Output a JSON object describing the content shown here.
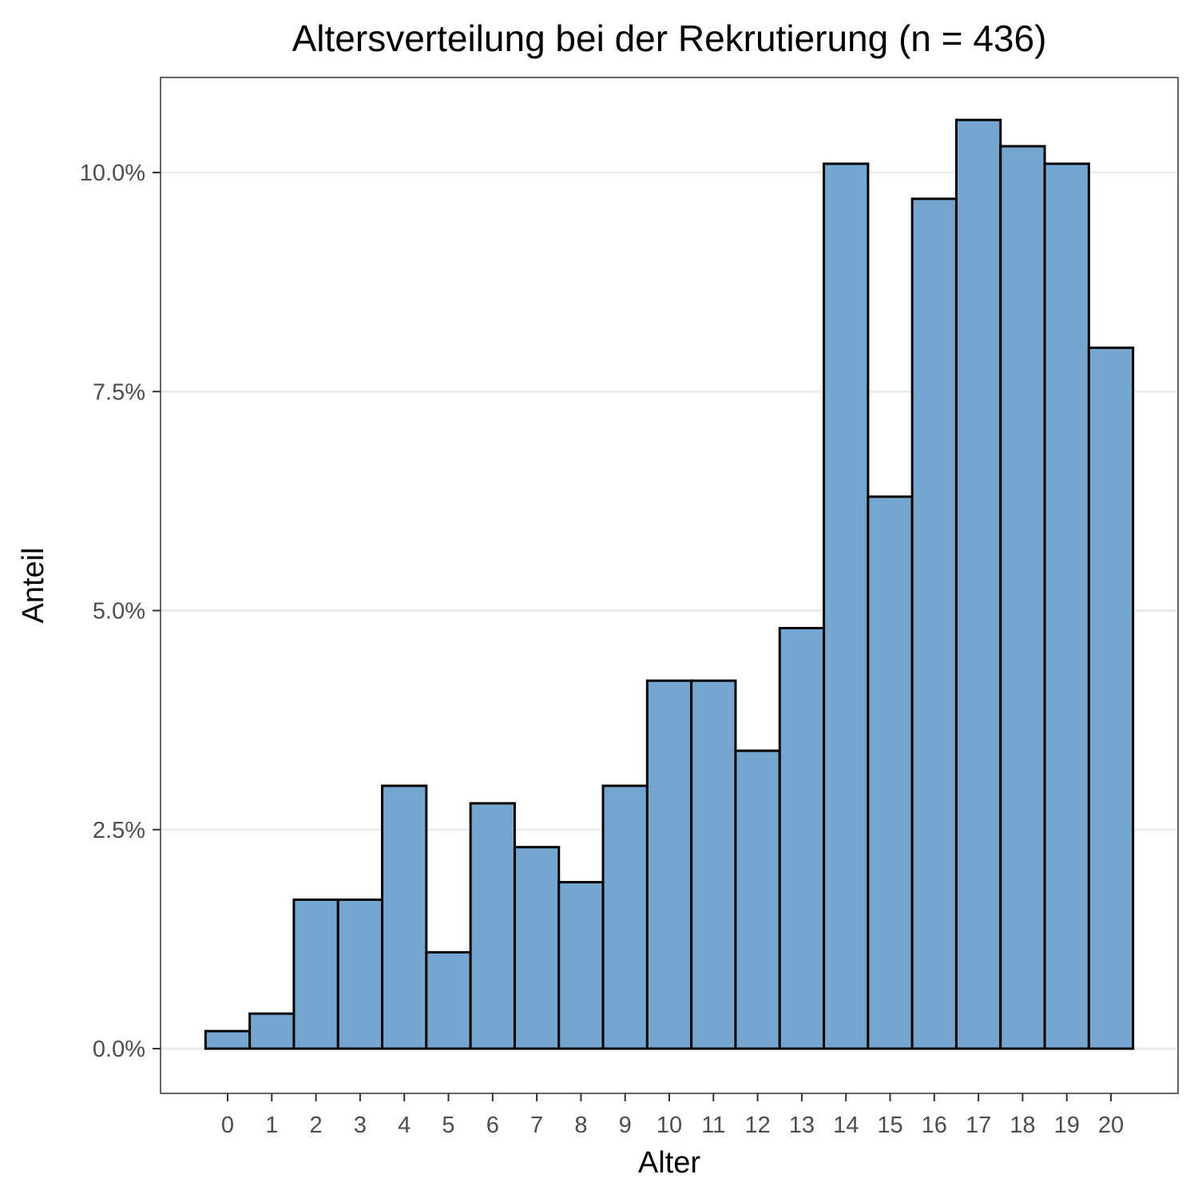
{
  "chart_data": {
    "type": "bar",
    "title": "Altersverteilung bei der Rekrutierung (n = 436)",
    "xlabel": "Alter",
    "ylabel": "Anteil",
    "categories": [
      "0",
      "1",
      "2",
      "3",
      "4",
      "5",
      "6",
      "7",
      "8",
      "9",
      "10",
      "11",
      "12",
      "13",
      "14",
      "15",
      "16",
      "17",
      "18",
      "19",
      "20"
    ],
    "values": [
      0.2,
      0.4,
      1.7,
      1.7,
      3.0,
      1.1,
      2.8,
      2.3,
      1.9,
      3.0,
      4.2,
      4.2,
      3.4,
      4.8,
      10.1,
      6.3,
      9.7,
      10.6,
      10.3,
      10.1,
      8.0
    ],
    "y_unit": "%",
    "ylim": [
      -0.5,
      11.1
    ],
    "yticks": [
      0,
      2.5,
      5,
      7.5,
      10
    ],
    "ytick_labels": [
      "0.0%",
      "2.5%",
      "5.0%",
      "7.5%",
      "10.0%"
    ],
    "grid": "horizontal major",
    "legend": "none",
    "colors": {
      "bar_fill": "#75a6cf",
      "bar_stroke": "#000000",
      "grid": "#ebebeb",
      "panel_border": "#333333",
      "tick_label": "#4d4d4d"
    }
  }
}
